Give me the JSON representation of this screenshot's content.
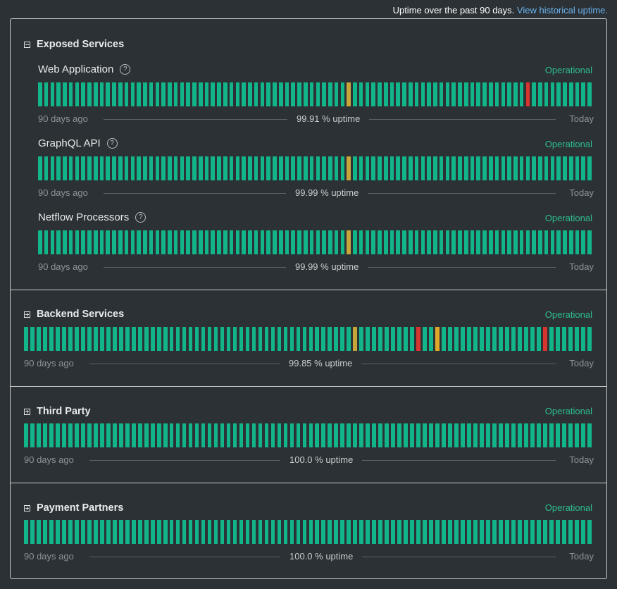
{
  "header": {
    "uptime_text": "Uptime over the past 90 days.",
    "history_link": "View historical uptime."
  },
  "colors": {
    "operational": "#12b58a",
    "degraded": "#c6a63a",
    "partial": "#e0a72a",
    "major": "#d6362f",
    "status_text": "#2fbf93"
  },
  "groups": [
    {
      "name": "Exposed Services",
      "expanded": true,
      "icon": "collapse-icon",
      "components": [
        {
          "name": "Web Application",
          "status": "Operational",
          "uptime": "99.91 % uptime",
          "left_label": "90 days ago",
          "right_label": "Today",
          "help": "?",
          "incidents": {
            "50": "degraded",
            "79": "major"
          }
        },
        {
          "name": "GraphQL API",
          "status": "Operational",
          "uptime": "99.99 % uptime",
          "left_label": "90 days ago",
          "right_label": "Today",
          "help": "?",
          "incidents": {
            "50": "degraded"
          }
        },
        {
          "name": "Netflow Processors",
          "status": "Operational",
          "uptime": "99.99 % uptime",
          "left_label": "90 days ago",
          "right_label": "Today",
          "help": "?",
          "incidents": {
            "50": "degraded"
          }
        }
      ]
    },
    {
      "name": "Backend Services",
      "expanded": false,
      "icon": "expand-icon",
      "status": "Operational",
      "uptime": "99.85 % uptime",
      "left_label": "90 days ago",
      "right_label": "Today",
      "incidents": {
        "52": "degraded",
        "62": "major",
        "65": "partial",
        "82": "major"
      }
    },
    {
      "name": "Third Party",
      "expanded": false,
      "icon": "expand-icon",
      "status": "Operational",
      "uptime": "100.0 % uptime",
      "left_label": "90 days ago",
      "right_label": "Today",
      "incidents": {}
    },
    {
      "name": "Payment Partners",
      "expanded": false,
      "icon": "expand-icon",
      "status": "Operational",
      "uptime": "100.0 % uptime",
      "left_label": "90 days ago",
      "right_label": "Today",
      "incidents": {}
    }
  ]
}
